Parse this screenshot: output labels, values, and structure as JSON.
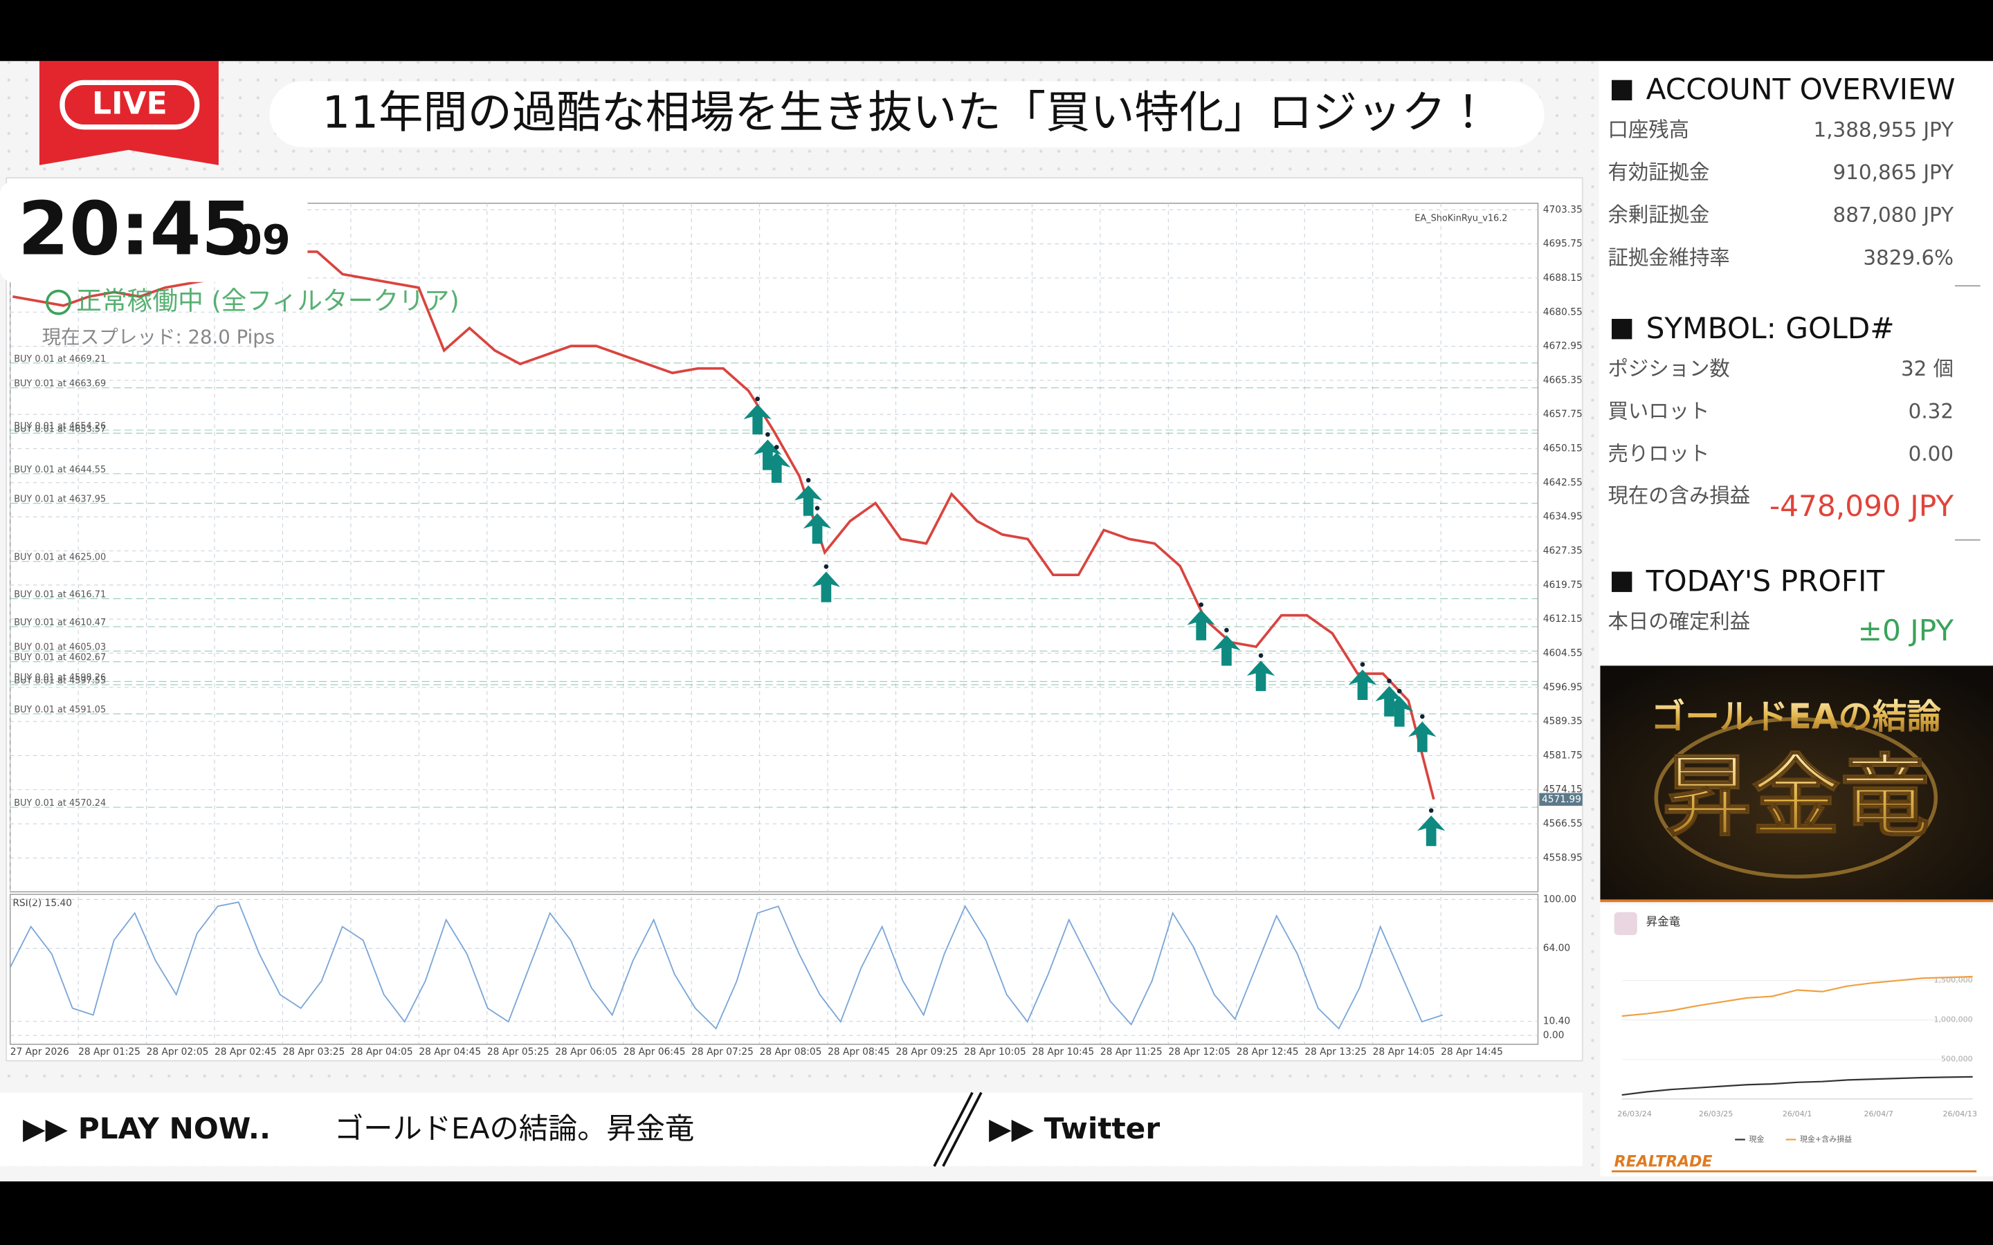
{
  "live_badge": "LIVE",
  "headline": "11年間の過酷な相場を生き抜いた「買い特化」ロジック！",
  "clock": {
    "hm": "20:45",
    "sec": "09"
  },
  "status": "正常稼働中 (全フィルタークリア)",
  "spread": "現在スプレッド: 28.0 Pips",
  "chart": {
    "type": "line",
    "ea_label": "EA_ShoKinRyu_v16.2",
    "ylim": [
      4551.4,
      4704.8
    ],
    "yticks": [
      4703.35,
      4695.75,
      4688.15,
      4680.55,
      4672.95,
      4665.35,
      4657.75,
      4650.15,
      4642.55,
      4634.95,
      4627.35,
      4619.75,
      4612.15,
      4604.55,
      4596.95,
      4589.35,
      4581.75,
      4574.15,
      4566.55,
      4558.95
    ],
    "x": [
      "27 Apr 2026",
      "28 Apr 01:25",
      "28 Apr 02:05",
      "28 Apr 02:45",
      "28 Apr 03:25",
      "28 Apr 04:05",
      "28 Apr 04:45",
      "28 Apr 05:25",
      "28 Apr 06:05",
      "28 Apr 06:45",
      "28 Apr 07:25",
      "28 Apr 08:05",
      "28 Apr 08:45",
      "28 Apr 09:25",
      "28 Apr 10:05",
      "28 Apr 10:45",
      "28 Apr 11:25",
      "28 Apr 12:05",
      "28 Apr 12:45",
      "28 Apr 13:25",
      "28 Apr 14:05",
      "28 Apr 14:45"
    ],
    "price": {
      "color": "#d9443f",
      "values": [
        4684,
        4683,
        4682,
        4684,
        4685,
        4684,
        4686,
        4687,
        4688,
        4690,
        4692,
        4694,
        4694,
        4689,
        4688,
        4687,
        4686,
        4672,
        4677,
        4672,
        4669,
        4671,
        4673,
        4673,
        4671,
        4669,
        4667,
        4668,
        4668,
        4663,
        4654,
        4644,
        4627,
        4634,
        4638,
        4630,
        4629,
        4640,
        4634,
        4631,
        4630,
        4622,
        4622,
        4632,
        4630,
        4629,
        4624,
        4612,
        4607,
        4606,
        4613,
        4613,
        4609,
        4600,
        4600,
        4594,
        4572
      ]
    },
    "current_price": 4571.99,
    "orders": [
      {
        "label": "BUY 0.01 at 4669.21",
        "price": 4669.21
      },
      {
        "label": "BUY 0.01 at 4663.69",
        "price": 4663.69
      },
      {
        "label": "BUY 0.01 at 4654.26",
        "price": 4654.26
      },
      {
        "label": "BUY 0.01 at 4653.57",
        "price": 4653.57
      },
      {
        "label": "BUY 0.01 at 4644.55",
        "price": 4644.55
      },
      {
        "label": "BUY 0.01 at 4637.95",
        "price": 4637.95
      },
      {
        "label": "BUY 0.01 at 4625.00",
        "price": 4625
      },
      {
        "label": "BUY 0.01 at 4616.71",
        "price": 4616.71
      },
      {
        "label": "BUY 0.01 at 4610.47",
        "price": 4610.47
      },
      {
        "label": "BUY 0.01 at 4605.03",
        "price": 4605.03
      },
      {
        "label": "BUY 0.01 at 4602.67",
        "price": 4602.67
      },
      {
        "label": "BUY 0.01 at 4598.26",
        "price": 4598.26
      },
      {
        "label": "BUY 0.01 at 4597.55",
        "price": 4597.55
      },
      {
        "label": "BUY 0.01 at 4591.05",
        "price": 4591.05
      },
      {
        "label": "BUY 0.01 at 4570.24",
        "price": 4570.24
      }
    ],
    "rsi": {
      "label": "RSI(2) 15.40",
      "color": "#7aa6d8",
      "ylim": [
        0,
        100
      ],
      "yticks": [
        {
          "value": 100,
          "label": "100.00"
        },
        {
          "value": 64,
          "label": "64.00"
        },
        {
          "value": 10.4,
          "label": "10.40"
        },
        {
          "value": 0,
          "label": "0.00"
        }
      ],
      "values": [
        50,
        80,
        60,
        20,
        15,
        70,
        90,
        55,
        30,
        75,
        95,
        98,
        60,
        30,
        20,
        40,
        80,
        70,
        30,
        10,
        40,
        85,
        60,
        20,
        10,
        50,
        90,
        70,
        35,
        15,
        55,
        85,
        45,
        20,
        5,
        40,
        90,
        95,
        60,
        30,
        10,
        50,
        80,
        40,
        15,
        60,
        95,
        70,
        30,
        10,
        45,
        85,
        55,
        25,
        8,
        40,
        90,
        65,
        30,
        12,
        50,
        88,
        60,
        20,
        5,
        35,
        80,
        45,
        10,
        15
      ]
    }
  },
  "account": {
    "title": "ACCOUNT OVERVIEW",
    "rows": [
      [
        "口座残高",
        "1,388,955 JPY"
      ],
      [
        "有効証拠金",
        "910,865 JPY"
      ],
      [
        "余剰証拠金",
        "887,080 JPY"
      ],
      [
        "証拠金維持率",
        "3829.6%"
      ]
    ]
  },
  "symbol": {
    "title": "SYMBOL: GOLD#",
    "rows": [
      [
        "ポジション数",
        "32 個"
      ],
      [
        "買いロット",
        "0.32"
      ],
      [
        "売りロット",
        "0.00"
      ]
    ],
    "pl_label": "現在の含み損益",
    "pl_value": "-478,090 JPY"
  },
  "profit": {
    "title": "TODAY'S PROFIT",
    "label": "本日の確定利益",
    "value": "±0 JPY"
  },
  "banner": {
    "line1": "ゴールドEAの結論",
    "line2": "昇金竜"
  },
  "equity_chart": {
    "type": "line",
    "title": "昇金竜",
    "ylim": [
      0,
      1900000
    ],
    "yticks": [
      {
        "value": 500000,
        "label": "500,000"
      },
      {
        "value": 1000000,
        "label": "1,000,000"
      },
      {
        "value": 1500000,
        "label": "1,500,000"
      }
    ],
    "x_labels": [
      "26/03/24",
      "26/03/25",
      "26/04/1",
      "26/04/7",
      "26/04/13"
    ],
    "series": [
      {
        "name": "現金",
        "color": "#333333",
        "values": [
          50000,
          90000,
          120000,
          140000,
          160000,
          180000,
          190000,
          210000,
          220000,
          240000,
          250000,
          260000,
          270000,
          275000,
          280000
        ]
      },
      {
        "name": "現金+含み損益",
        "color": "#f0a040",
        "values": [
          1050000,
          1080000,
          1120000,
          1180000,
          1230000,
          1280000,
          1300000,
          1380000,
          1360000,
          1430000,
          1470000,
          1500000,
          1530000,
          1540000,
          1550000
        ]
      }
    ],
    "brand": "REALTRADE"
  },
  "footer": {
    "play": "▶▶ PLAY NOW..",
    "play_title": "ゴールドEAの結論。昇金竜",
    "twitter": "▶▶ Twitter"
  }
}
